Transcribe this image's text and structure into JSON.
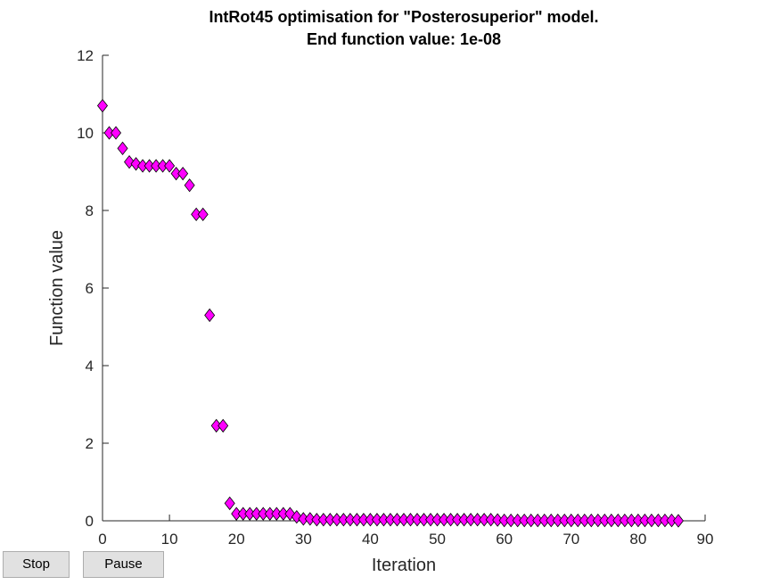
{
  "chart_data": {
    "type": "scatter",
    "title": "IntRot45 optimisation for \"Posterosuperior\" model.",
    "subtitle": "End function value: 1e-08",
    "xlabel": "Iteration",
    "ylabel": "Function value",
    "xlim": [
      0,
      90
    ],
    "ylim": [
      0,
      12
    ],
    "xticks": [
      0,
      10,
      20,
      30,
      40,
      50,
      60,
      70,
      80,
      90
    ],
    "yticks": [
      0,
      2,
      4,
      6,
      8,
      10,
      12
    ],
    "grid": false,
    "marker": "diamond",
    "marker_color": "#ff00ff",
    "marker_edge_color": "#000000",
    "x": [
      0,
      1,
      2,
      3,
      4,
      5,
      6,
      7,
      8,
      9,
      10,
      11,
      12,
      13,
      14,
      15,
      16,
      17,
      18,
      19,
      20,
      21,
      22,
      23,
      24,
      25,
      26,
      27,
      28,
      29,
      30,
      31,
      32,
      33,
      34,
      35,
      36,
      37,
      38,
      39,
      40,
      41,
      42,
      43,
      44,
      45,
      46,
      47,
      48,
      49,
      50,
      51,
      52,
      53,
      54,
      55,
      56,
      57,
      58,
      59,
      60,
      61,
      62,
      63,
      64,
      65,
      66,
      67,
      68,
      69,
      70,
      71,
      72,
      73,
      74,
      75,
      76,
      77,
      78,
      79,
      80,
      81,
      82,
      83,
      84,
      85,
      86
    ],
    "y": [
      10.7,
      10.0,
      10.0,
      9.6,
      9.25,
      9.2,
      9.15,
      9.15,
      9.15,
      9.15,
      9.15,
      8.95,
      8.95,
      8.65,
      7.9,
      7.9,
      5.3,
      2.45,
      2.45,
      0.45,
      0.18,
      0.18,
      0.18,
      0.18,
      0.18,
      0.18,
      0.18,
      0.18,
      0.18,
      0.1,
      0.05,
      0.05,
      0.03,
      0.03,
      0.03,
      0.03,
      0.03,
      0.03,
      0.03,
      0.03,
      0.03,
      0.03,
      0.03,
      0.03,
      0.03,
      0.03,
      0.03,
      0.03,
      0.03,
      0.03,
      0.03,
      0.03,
      0.03,
      0.03,
      0.03,
      0.03,
      0.03,
      0.03,
      0.03,
      0.02,
      0.01,
      0.01,
      0.01,
      0.01,
      0.01,
      0.01,
      0.01,
      0.01,
      0.01,
      0.01,
      0.01,
      0.01,
      0.01,
      0.01,
      0.01,
      0.01,
      0.01,
      0.01,
      0.01,
      0.01,
      0.01,
      0.01,
      0.01,
      0.01,
      0.01,
      0.01,
      0.0
    ]
  },
  "controls": {
    "stop_label": "Stop",
    "pause_label": "Pause"
  }
}
